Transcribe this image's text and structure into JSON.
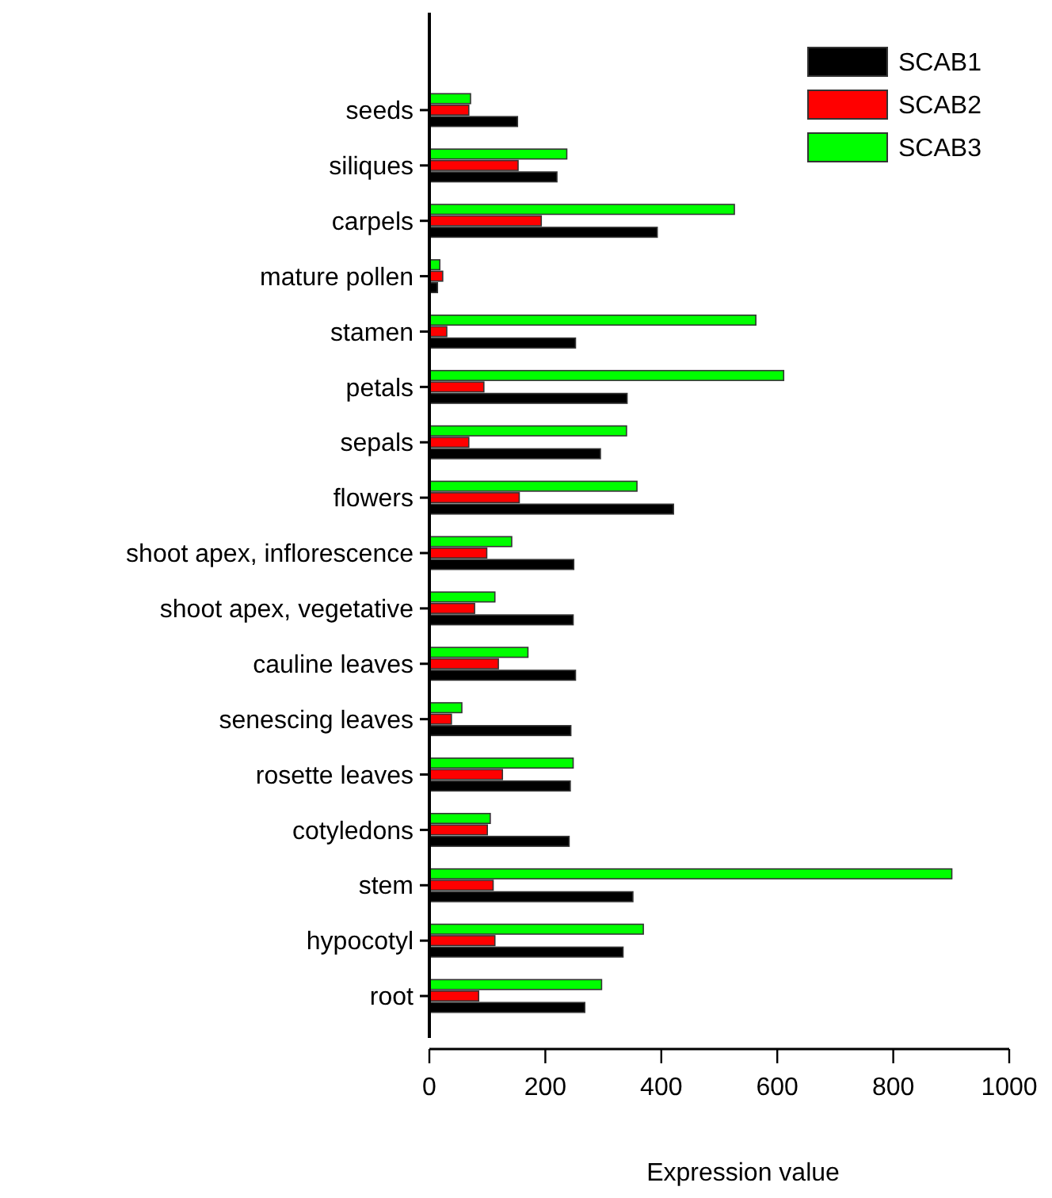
{
  "chart_data": {
    "type": "bar",
    "orientation": "horizontal",
    "xlabel": "Expression value",
    "categories": [
      "seeds",
      "siliques",
      "carpels",
      "mature pollen",
      "stamen",
      "petals",
      "sepals",
      "flowers",
      "shoot apex, inflorescence",
      "shoot apex, vegetative",
      "cauline leaves",
      "senescing leaves",
      "rosette leaves",
      "cotyledons",
      "stem",
      "hypocotyl",
      "root"
    ],
    "series": [
      {
        "name": "SCAB1",
        "color": "#000000",
        "values": [
          152,
          220,
          393,
          14,
          252,
          341,
          295,
          421,
          249,
          248,
          252,
          244,
          243,
          241,
          351,
          334,
          268
        ]
      },
      {
        "name": "SCAB2",
        "color": "#ff0000",
        "values": [
          68,
          153,
          193,
          23,
          30,
          94,
          68,
          155,
          99,
          78,
          119,
          38,
          126,
          100,
          110,
          113,
          85
        ]
      },
      {
        "name": "SCAB3",
        "color": "#00ff00",
        "values": [
          71,
          237,
          526,
          18,
          563,
          611,
          340,
          358,
          142,
          113,
          170,
          56,
          248,
          105,
          901,
          369,
          297
        ]
      }
    ],
    "xlim": [
      0,
      1000
    ],
    "xticks": [
      0,
      200,
      400,
      600,
      800,
      1000
    ],
    "legend": "top right",
    "grid": false
  }
}
